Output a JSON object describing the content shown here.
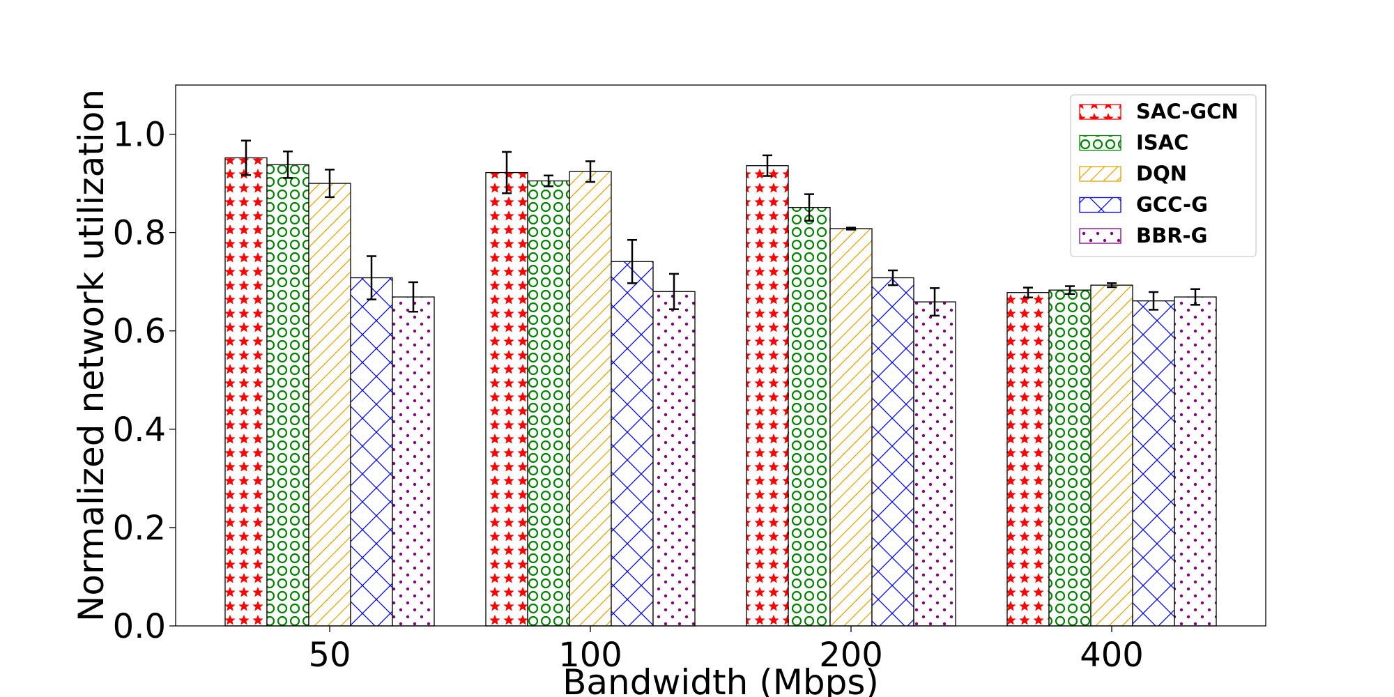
{
  "chart_data": {
    "type": "bar",
    "title": "",
    "xlabel": "Bandwidth (Mbps)",
    "ylabel": "Normalized network utilization",
    "categories": [
      "50",
      "100",
      "200",
      "400"
    ],
    "ylim": [
      0,
      1.1
    ],
    "yticks": [
      0.0,
      0.2,
      0.4,
      0.6,
      0.8,
      1.0
    ],
    "ytick_labels": [
      "0.0",
      "0.2",
      "0.4",
      "0.6",
      "0.8",
      "1.0"
    ],
    "grid": false,
    "legend_position": "top-right",
    "series": [
      {
        "name": "SAC-GCN",
        "values": [
          0.952,
          0.922,
          0.936,
          0.678
        ],
        "errors": [
          0.035,
          0.042,
          0.021,
          0.01
        ],
        "color": "#ff0000",
        "hatch": "stars"
      },
      {
        "name": "ISAC",
        "values": [
          0.938,
          0.905,
          0.851,
          0.683
        ],
        "errors": [
          0.027,
          0.011,
          0.027,
          0.008
        ],
        "color": "#008000",
        "hatch": "circles"
      },
      {
        "name": "DQN",
        "values": [
          0.9,
          0.924,
          0.808,
          0.693
        ],
        "errors": [
          0.028,
          0.021,
          0.002,
          0.004
        ],
        "color": "#e5a400",
        "hatch": "diagonal"
      },
      {
        "name": "GCC-G",
        "values": [
          0.708,
          0.741,
          0.708,
          0.661
        ],
        "errors": [
          0.044,
          0.044,
          0.015,
          0.018
        ],
        "color": "#0000ff",
        "hatch": "crosshatch"
      },
      {
        "name": "BBR-G",
        "values": [
          0.669,
          0.68,
          0.659,
          0.669
        ],
        "errors": [
          0.03,
          0.036,
          0.028,
          0.016
        ],
        "color": "#800080",
        "hatch": "dots"
      }
    ]
  }
}
